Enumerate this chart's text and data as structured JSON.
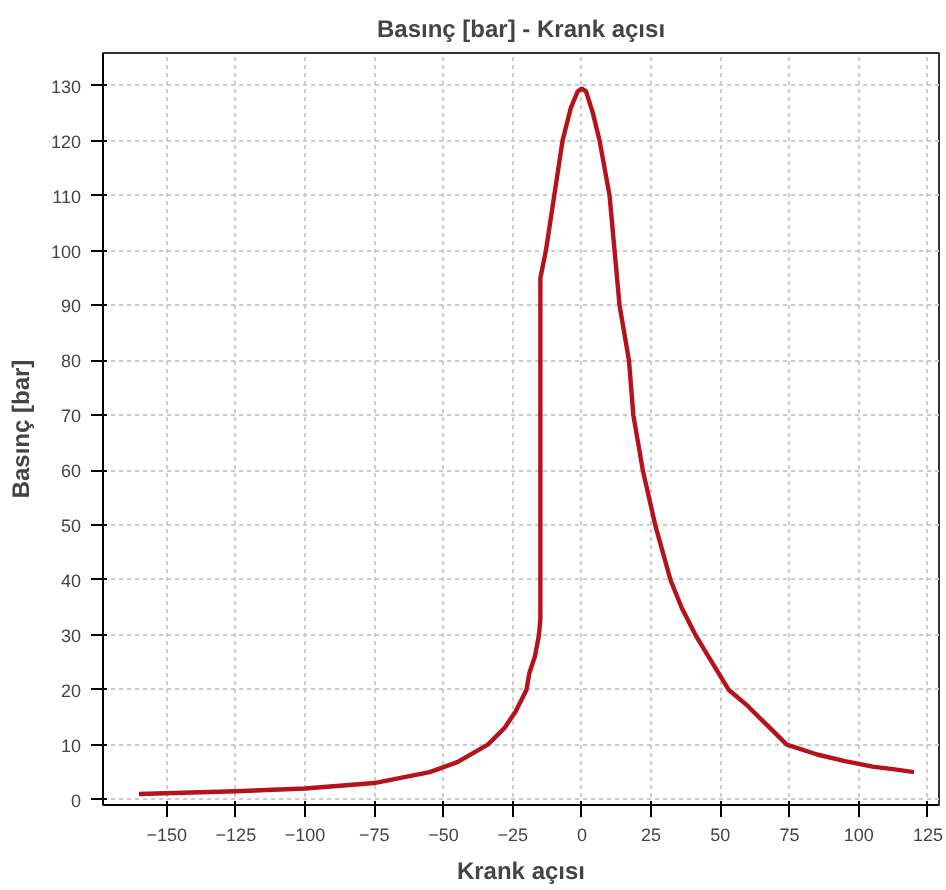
{
  "chart_data": {
    "type": "line",
    "title": "Basınç [bar] - Krank açısı",
    "xlabel": "Krank açısı",
    "ylabel": "Basınç [bar]",
    "xlim": [
      -173,
      129
    ],
    "ylim": [
      -1,
      136
    ],
    "xticks": [
      -150,
      -125,
      -100,
      -75,
      -50,
      -25,
      0,
      25,
      50,
      75,
      100,
      125
    ],
    "yticks": [
      0,
      10,
      20,
      30,
      40,
      50,
      60,
      70,
      80,
      90,
      100,
      110,
      120,
      130
    ],
    "grid": true,
    "marker": "none",
    "line_style": "solid",
    "series": [
      {
        "color": "#b5121b",
        "x": [
          -160,
          -125,
          -100,
          -75,
          -55,
          -45,
          -34,
          -28,
          -24,
          -20,
          -19,
          -17,
          -15.5,
          -15,
          -15,
          -13,
          -10,
          -7,
          -4,
          -1.5,
          0,
          1.5,
          4,
          6.4,
          10,
          13.6,
          17,
          18.6,
          22,
          26.5,
          32,
          36,
          41,
          47,
          53,
          60,
          67,
          74,
          85,
          95,
          105,
          113,
          120
        ],
        "values": [
          1,
          1.5,
          2,
          3,
          5,
          6.8,
          10,
          13,
          16,
          20,
          23,
          26,
          30,
          33,
          95,
          100,
          110,
          120,
          126,
          129,
          129.5,
          129,
          125,
          120,
          110,
          90,
          80,
          70,
          60,
          50,
          40,
          35,
          30,
          25,
          20,
          17,
          13.5,
          10,
          8.2,
          7,
          6,
          5.5,
          5
        ]
      }
    ]
  }
}
